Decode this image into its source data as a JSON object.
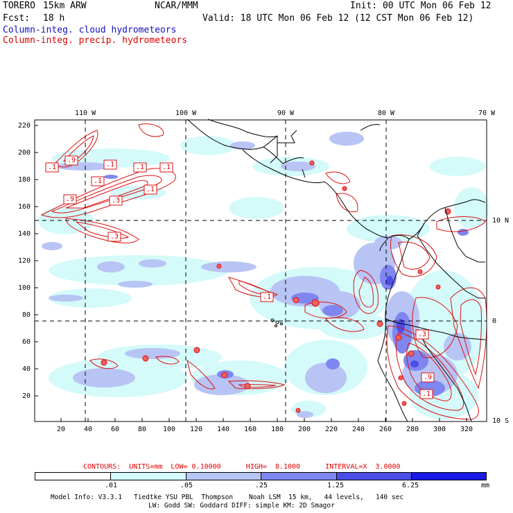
{
  "header": {
    "model": "TORERO",
    "resolution": "15km ARW",
    "org": "NCAR/MMM",
    "init": "Init: 00 UTC Mon 06 Feb 12",
    "fcst_label": "Fcst:",
    "fcst_value": "18 h",
    "valid": "Valid: 18 UTC Mon 06 Feb 12 (12 CST Mon 06 Feb 12)",
    "field_shaded": "Column-integ. cloud hydrometeors",
    "field_contour": "Column-integ. precip. hydrometeors"
  },
  "colors": {
    "shade_1": "#d4fafa",
    "shade_2": "#b8c4f4",
    "shade_3": "#7f86f0",
    "shade_4": "#4b4de8",
    "shade_5": "#1a1ae6",
    "contour": "#dd1010"
  },
  "axes": {
    "top_lon": [
      "110 W",
      "100 W",
      "90 W",
      "80 W",
      "70 W"
    ],
    "right_lat": [
      "10 N",
      "0",
      "10 S"
    ],
    "left_grid": [
      "220",
      "200",
      "180",
      "160",
      "140",
      "120",
      "100",
      "80",
      "60",
      "40",
      "20"
    ],
    "bottom_grid": [
      "20",
      "40",
      "60",
      "80",
      "100",
      "120",
      "140",
      "160",
      "180",
      "200",
      "220",
      "240",
      "260",
      "280",
      "300",
      "320"
    ]
  },
  "contour_labels": [
    ".1",
    ".9",
    ".1",
    ".1",
    ".1",
    ".1",
    ".9",
    ".3",
    ".1",
    ".3",
    ".1",
    ".3",
    ".9",
    ".1"
  ],
  "contour_info": "CONTOURS:  UNITS=mm  LOW= 0.10000      HIGH=  8.1000      INTERVAL=X  3.0000",
  "colorbar": {
    "ticks": [
      ".01",
      ".05",
      ".25",
      "1.25",
      "6.25"
    ],
    "units": "mm"
  },
  "footer": {
    "line1": "Model Info: V3.3.1   Tiedtke YSU PBL  Thompson    Noah LSM  15 km,   44 levels,   140 sec",
    "line2": "LW: Godd SW: Goddard DIFF: simple KM: 2D Smagor"
  }
}
